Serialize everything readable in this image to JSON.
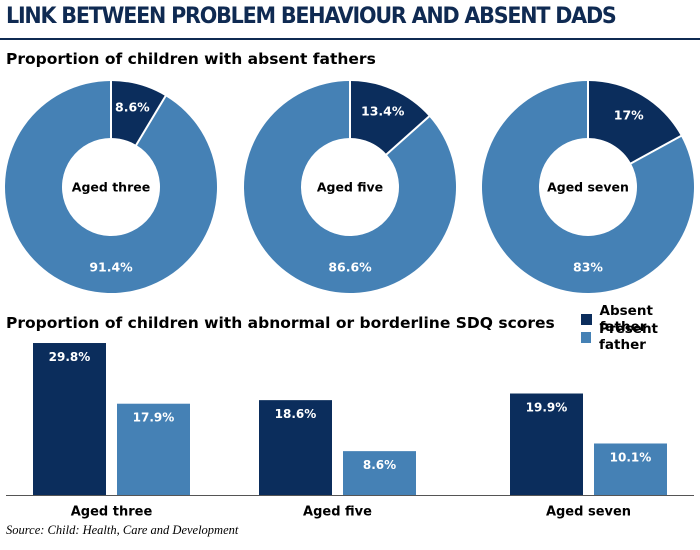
{
  "title": "LINK BETWEEN PROBLEM BEHAVIOUR AND ABSENT DADS",
  "source": "Source: Child: Health, Care and Development",
  "colors": {
    "absent": "#0b2d5c",
    "present": "#4581b5",
    "title": "#0f2a52"
  },
  "chart_data": [
    {
      "type": "pie",
      "title": "Proportion of children with absent fathers",
      "charts": [
        {
          "center_label": "Aged three",
          "slices": [
            {
              "name": "Absent father",
              "value": 8.6,
              "label": "8.6%"
            },
            {
              "name": "Present father",
              "value": 91.4,
              "label": "91.4%"
            }
          ]
        },
        {
          "center_label": "Aged five",
          "slices": [
            {
              "name": "Absent father",
              "value": 13.4,
              "label": "13.4%"
            },
            {
              "name": "Present father",
              "value": 86.6,
              "label": "86.6%"
            }
          ]
        },
        {
          "center_label": "Aged seven",
          "slices": [
            {
              "name": "Absent father",
              "value": 17,
              "label": "17%"
            },
            {
              "name": "Present father",
              "value": 83,
              "label": "83%"
            }
          ]
        }
      ]
    },
    {
      "type": "bar",
      "title": "Proportion of children with abnormal or borderline SDQ scores",
      "categories": [
        "Aged three",
        "Aged five",
        "Aged seven"
      ],
      "series": [
        {
          "name": "Absent father",
          "values": [
            29.8,
            18.6,
            19.9
          ],
          "labels": [
            "29.8%",
            "18.6%",
            "19.9%"
          ]
        },
        {
          "name": "Present father",
          "values": [
            17.9,
            8.6,
            10.1
          ],
          "labels": [
            "17.9%",
            "8.6%",
            "10.1%"
          ]
        }
      ],
      "ylim": [
        0,
        30
      ],
      "legend": "top-right"
    }
  ]
}
